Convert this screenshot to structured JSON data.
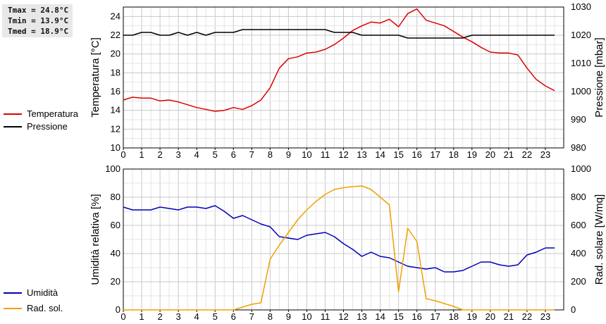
{
  "stats": {
    "tmax": "Tmax = 24.8°C",
    "tmin": "Tmin = 13.9°C",
    "tmed": "Tmed = 18.9°C"
  },
  "chart_data": [
    {
      "type": "line",
      "x_ticks": [
        "0",
        "1",
        "2",
        "3",
        "4",
        "5",
        "6",
        "7",
        "8",
        "9",
        "10",
        "11",
        "12",
        "13",
        "14",
        "15",
        "16",
        "17",
        "18",
        "19",
        "20",
        "21",
        "22",
        "23"
      ],
      "xlim": [
        0,
        24
      ],
      "ylabel_left": "Temperatura [°C]",
      "ylabel_right": "Pressione [mbar]",
      "ylim_left": [
        10,
        25
      ],
      "yticks_left": [
        "10",
        "12",
        "14",
        "16",
        "18",
        "20",
        "22",
        "24"
      ],
      "ylim_right": [
        980,
        1030
      ],
      "yticks_right": [
        "980",
        "990",
        "1000",
        "1010",
        "1020",
        "1030"
      ],
      "grid": true,
      "legend_position": "left",
      "series": [
        {
          "name": "Temperatura",
          "color": "#dd0000",
          "axis": "left",
          "x": [
            0,
            0.5,
            1,
            1.5,
            2,
            2.5,
            3,
            3.5,
            4,
            4.5,
            5,
            5.5,
            6,
            6.5,
            7,
            7.5,
            8,
            8.5,
            9,
            9.5,
            10,
            10.5,
            11,
            11.5,
            12,
            12.5,
            13,
            13.5,
            14,
            14.5,
            15,
            15.5,
            16,
            16.5,
            17,
            17.5,
            18,
            18.5,
            19,
            19.5,
            20,
            20.5,
            21,
            21.5,
            22,
            22.5,
            23,
            23.5
          ],
          "y": [
            15.1,
            15.4,
            15.3,
            15.3,
            15.0,
            15.1,
            14.9,
            14.6,
            14.3,
            14.1,
            13.9,
            14.0,
            14.3,
            14.1,
            14.5,
            15.1,
            16.4,
            18.5,
            19.5,
            19.7,
            20.1,
            20.2,
            20.5,
            21.0,
            21.7,
            22.5,
            23.0,
            23.4,
            23.3,
            23.7,
            22.9,
            24.3,
            24.8,
            23.6,
            23.3,
            23.0,
            22.4,
            21.8,
            21.3,
            20.7,
            20.2,
            20.1,
            20.1,
            19.9,
            18.5,
            17.3,
            16.6,
            16.1
          ]
        },
        {
          "name": "Pressione",
          "color": "#000000",
          "axis": "right",
          "x": [
            0,
            0.5,
            1,
            1.5,
            2,
            2.5,
            3,
            3.5,
            4,
            4.5,
            5,
            5.5,
            6,
            6.5,
            7,
            7.5,
            8,
            8.5,
            9,
            9.5,
            10,
            10.5,
            11,
            11.5,
            12,
            12.5,
            13,
            13.5,
            14,
            14.5,
            15,
            15.5,
            16,
            16.5,
            17,
            17.5,
            18,
            18.5,
            19,
            19.5,
            20,
            20.5,
            21,
            21.5,
            22,
            22.5,
            23,
            23.5
          ],
          "y": [
            1020,
            1020,
            1021,
            1021,
            1020,
            1020,
            1021,
            1020,
            1021,
            1020,
            1021,
            1021,
            1021,
            1022,
            1022,
            1022,
            1022,
            1022,
            1022,
            1022,
            1022,
            1022,
            1022,
            1021,
            1021,
            1021,
            1020,
            1020,
            1020,
            1020,
            1020,
            1019,
            1019,
            1019,
            1019,
            1019,
            1019,
            1019,
            1020,
            1020,
            1020,
            1020,
            1020,
            1020,
            1020,
            1020,
            1020,
            1020
          ]
        }
      ]
    },
    {
      "type": "line",
      "x_ticks": [
        "0",
        "1",
        "2",
        "3",
        "4",
        "5",
        "6",
        "7",
        "8",
        "9",
        "10",
        "11",
        "12",
        "13",
        "14",
        "15",
        "16",
        "17",
        "18",
        "19",
        "20",
        "21",
        "22",
        "23"
      ],
      "xlim": [
        0,
        24
      ],
      "ylabel_left": "Umidità relativa [%]",
      "ylabel_right": "Rad. solare [W/mq]",
      "ylim_left": [
        0,
        100
      ],
      "yticks_left": [
        "0",
        "20",
        "40",
        "60",
        "80",
        "100"
      ],
      "ylim_right": [
        0,
        1000
      ],
      "yticks_right": [
        "0",
        "200",
        "400",
        "600",
        "800",
        "1000"
      ],
      "grid": true,
      "legend_position": "left",
      "series": [
        {
          "name": "Umidità",
          "color": "#0000bb",
          "axis": "left",
          "x": [
            0,
            0.5,
            1,
            1.5,
            2,
            2.5,
            3,
            3.5,
            4,
            4.5,
            5,
            5.5,
            6,
            6.5,
            7,
            7.5,
            8,
            8.5,
            9,
            9.5,
            10,
            10.5,
            11,
            11.5,
            12,
            12.5,
            13,
            13.5,
            14,
            14.5,
            15,
            15.5,
            16,
            16.5,
            17,
            17.5,
            18,
            18.5,
            19,
            19.5,
            20,
            20.5,
            21,
            21.5,
            22,
            22.5,
            23,
            23.5
          ],
          "y": [
            73,
            71,
            71,
            71,
            73,
            72,
            71,
            73,
            73,
            72,
            74,
            70,
            65,
            67,
            64,
            61,
            59,
            52,
            51,
            50,
            53,
            54,
            55,
            52,
            47,
            43,
            38,
            41,
            38,
            37,
            34,
            31,
            30,
            29,
            30,
            27,
            27,
            28,
            31,
            34,
            34,
            32,
            31,
            32,
            39,
            41,
            44,
            44
          ]
        },
        {
          "name": "Rad. sol.",
          "color": "#f0a000",
          "axis": "right",
          "x": [
            0,
            0.5,
            1,
            1.5,
            2,
            2.5,
            3,
            3.5,
            4,
            4.5,
            5,
            5.5,
            6,
            6.5,
            7,
            7.5,
            8,
            8.5,
            9,
            9.5,
            10,
            10.5,
            11,
            11.5,
            12,
            12.5,
            13,
            13.5,
            14,
            14.5,
            15,
            15.5,
            16,
            16.5,
            17,
            17.5,
            18,
            18.5,
            19,
            19.5,
            20,
            20.5,
            21,
            21.5,
            22,
            22.5,
            23,
            23.5
          ],
          "y": [
            0,
            0,
            0,
            0,
            0,
            0,
            0,
            0,
            0,
            0,
            0,
            0,
            0,
            20,
            40,
            50,
            360,
            460,
            550,
            640,
            710,
            770,
            820,
            855,
            868,
            875,
            880,
            855,
            800,
            745,
            130,
            580,
            485,
            80,
            65,
            45,
            25,
            0,
            0,
            0,
            0,
            0,
            0,
            0,
            0,
            0,
            0,
            0
          ]
        }
      ]
    }
  ]
}
